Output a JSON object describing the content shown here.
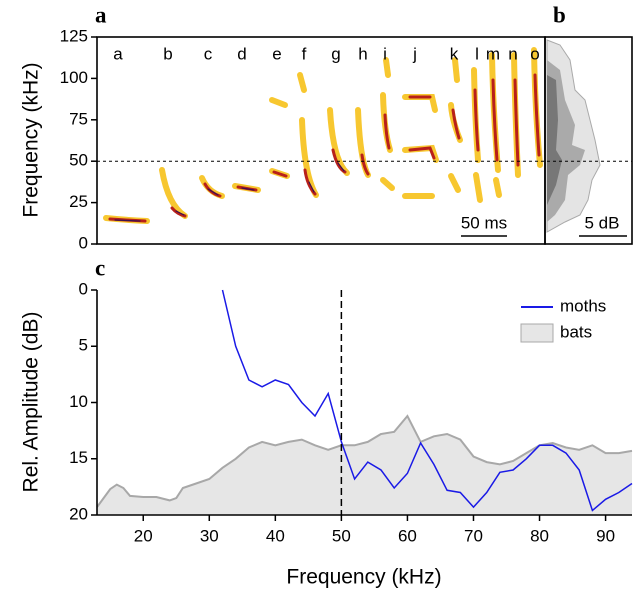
{
  "chart_data": [
    {
      "type": "spectrogram",
      "panel_label": "a",
      "ylabel": "Frequency (kHz)",
      "ylim": [
        0,
        125
      ],
      "yticks": [
        0,
        25,
        50,
        75,
        100,
        125
      ],
      "call_labels": [
        "a",
        "b",
        "c",
        "d",
        "e",
        "f",
        "g",
        "h",
        "i",
        "j",
        "k",
        "l",
        "m",
        "n",
        "o"
      ],
      "reference_line": 50,
      "scale_bar": "50 ms"
    },
    {
      "type": "profile",
      "panel_label": "b",
      "scale_bar": "5 dB"
    },
    {
      "type": "line",
      "panel_label": "c",
      "xlabel": "Frequency (kHz)",
      "ylabel": "Rel. Amplitude (dB)",
      "xlim": [
        13,
        94
      ],
      "xticks": [
        20,
        30,
        40,
        50,
        60,
        70,
        80,
        90
      ],
      "ylim": [
        0,
        20
      ],
      "yticks": [
        0,
        5,
        10,
        15,
        20
      ],
      "y_inverted": true,
      "reference_line": 50,
      "legend": "top-right",
      "series": [
        {
          "name": "moths",
          "kind": "line",
          "color": "#1a1ae6",
          "x": [
            32,
            34,
            36,
            38,
            40,
            42,
            44,
            46,
            48,
            50,
            52,
            54,
            56,
            58,
            60,
            62,
            64,
            66,
            68,
            70,
            72,
            74,
            76,
            78,
            80,
            82,
            84,
            86,
            88,
            90,
            92,
            94
          ],
          "values": [
            0,
            5,
            8,
            8.6,
            8,
            8.4,
            10,
            11.2,
            9.2,
            13.5,
            16.8,
            15.3,
            16,
            17.6,
            16.3,
            13.6,
            15.5,
            17.8,
            18,
            19.3,
            18,
            16.2,
            16,
            15,
            13.8,
            13.8,
            14.5,
            16,
            19.6,
            18.6,
            18,
            17.2
          ]
        },
        {
          "name": "bats",
          "kind": "area",
          "color": "#e6e6e6",
          "edge_color": "#a8a8a8",
          "x": [
            13,
            14,
            15,
            16,
            17,
            18,
            20,
            22,
            24,
            25,
            26,
            28,
            30,
            32,
            34,
            36,
            38,
            40,
            42,
            44,
            46,
            48,
            50,
            52,
            54,
            56,
            58,
            60,
            62,
            64,
            66,
            68,
            70,
            72,
            74,
            76,
            78,
            80,
            82,
            84,
            86,
            88,
            90,
            92,
            94
          ],
          "values": [
            19.3,
            18.5,
            17.7,
            17.3,
            17.6,
            18.3,
            18.4,
            18.4,
            18.7,
            18.5,
            17.6,
            17.2,
            16.8,
            15.8,
            15,
            14,
            13.5,
            13.8,
            13.5,
            13.3,
            13.8,
            14.2,
            13.8,
            13.8,
            13.5,
            12.8,
            12.6,
            11.2,
            13.5,
            13,
            12.8,
            13.3,
            14.8,
            15.3,
            15.5,
            15.2,
            14.5,
            13.8,
            13.6,
            14,
            14.2,
            13.8,
            14.5,
            14.5,
            14.3
          ]
        }
      ]
    }
  ]
}
